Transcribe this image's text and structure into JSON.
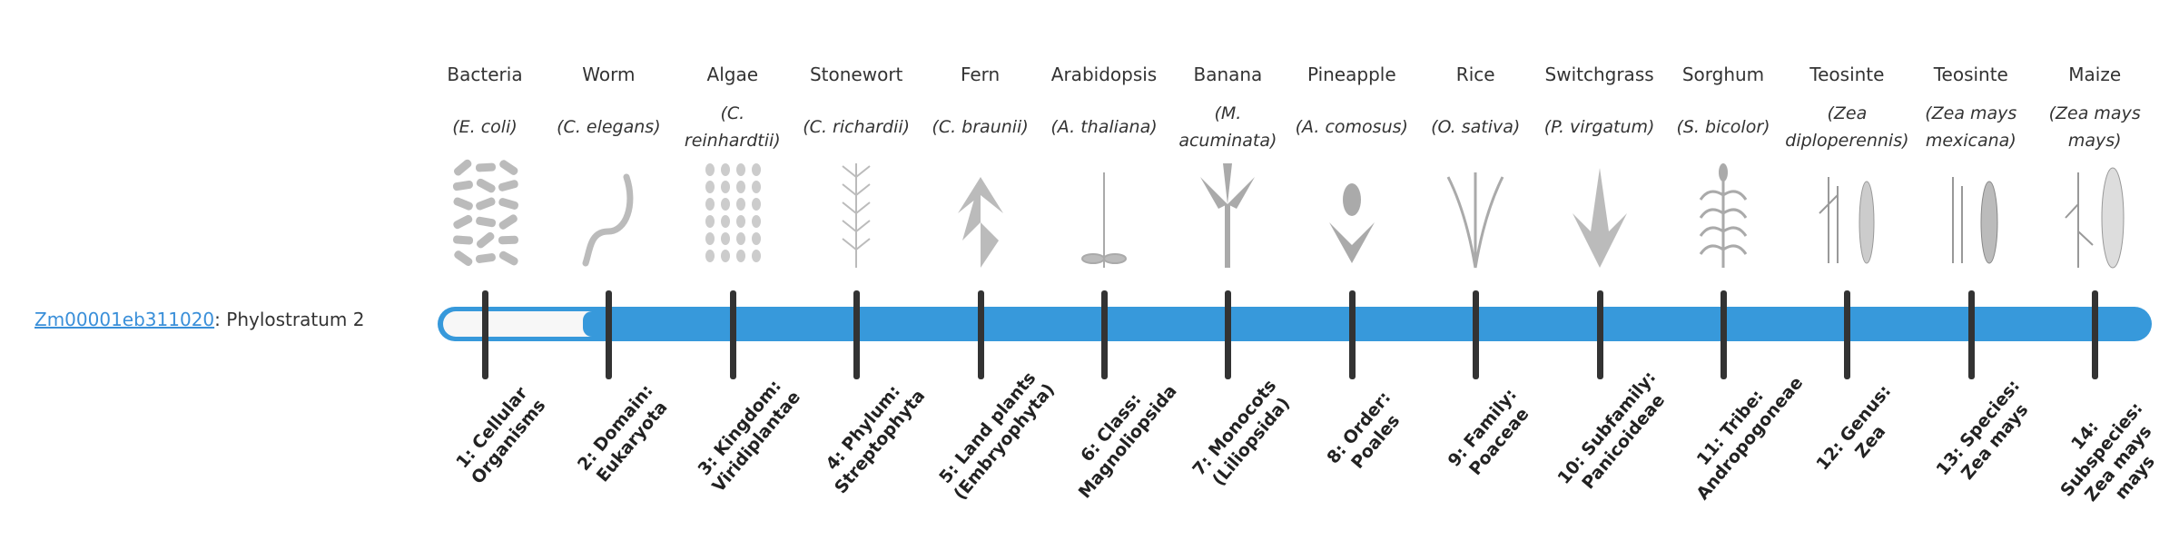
{
  "gene": {
    "id": "Zm00001eb311020",
    "suffix": ": Phylostratum 2"
  },
  "phylostratum": 2,
  "colors": {
    "bar": "#3799db",
    "tick": "#333333",
    "link": "#3a8fd9",
    "fill": "#f7f7f7"
  },
  "organisms": [
    {
      "common": "Bacteria",
      "scientific": "(E. coli)",
      "icon": "bacteria-image",
      "stratum": "1: Cellular Organisms"
    },
    {
      "common": "Worm",
      "scientific": "(C. elegans)",
      "icon": "worm-image",
      "stratum": "2: Domain: Eukaryota"
    },
    {
      "common": "Algae",
      "scientific": "(C. reinhardtii)",
      "icon": "algae-image",
      "stratum": "3: Kingdom: Viridiplantae"
    },
    {
      "common": "Stonewort",
      "scientific": "(C. richardii)",
      "icon": "stonewort-image",
      "stratum": "4: Phylum: Streptophyta"
    },
    {
      "common": "Fern",
      "scientific": "(C. braunii)",
      "icon": "fern-image",
      "stratum": "5: Land plants (Embryophyta)"
    },
    {
      "common": "Arabidopsis",
      "scientific": "(A. thaliana)",
      "icon": "arabidopsis-image",
      "stratum": "6: Class: Magnoliopsida"
    },
    {
      "common": "Banana",
      "scientific": "(M. acuminata)",
      "icon": "banana-image",
      "stratum": "7: Monocots (Liliopsida)"
    },
    {
      "common": "Pineapple",
      "scientific": "(A. comosus)",
      "icon": "pineapple-image",
      "stratum": "8: Order: Poales"
    },
    {
      "common": "Rice",
      "scientific": "(O. sativa)",
      "icon": "rice-image",
      "stratum": "9: Family: Poaceae"
    },
    {
      "common": "Switchgrass",
      "scientific": "(P. virgatum)",
      "icon": "switchgrass-image",
      "stratum": "10: Subfamily: Panicoideae"
    },
    {
      "common": "Sorghum",
      "scientific": "(S. bicolor)",
      "icon": "sorghum-image",
      "stratum": "11: Tribe: Andropogoneae"
    },
    {
      "common": "Teosinte",
      "scientific": "(Zea diploperennis)",
      "icon": "teosinte-image",
      "stratum": "12: Genus: Zea"
    },
    {
      "common": "Teosinte",
      "scientific": "(Zea mays mexicana)",
      "icon": "teosinte-mexicana-image",
      "stratum": "13: Species: Zea mays"
    },
    {
      "common": "Maize",
      "scientific": "(Zea mays mays)",
      "icon": "maize-image",
      "stratum": "14: Subspecies: Zea mays mays"
    }
  ]
}
